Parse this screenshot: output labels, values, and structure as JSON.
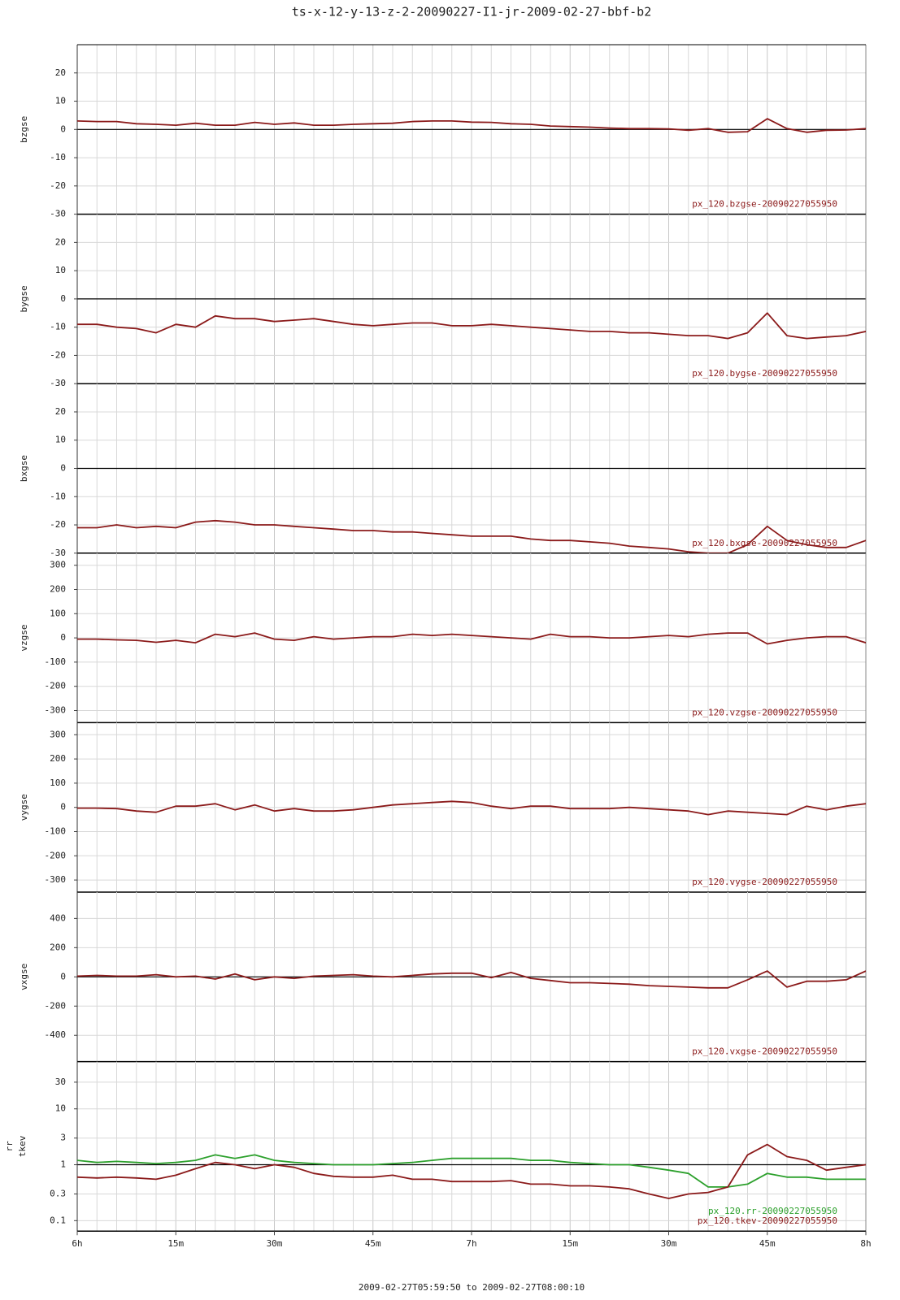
{
  "chart_data": {
    "type": "line",
    "title": "ts-x-12-y-13-z-2-20090227-I1-jr-2009-02-27-bbf-b2",
    "xlabel": "2009-02-27T05:59:50 to 2009-02-27T08:00:10",
    "x": [
      0,
      3,
      6,
      9,
      12,
      15,
      18,
      21,
      24,
      27,
      30,
      33,
      36,
      39,
      42,
      45,
      48,
      51,
      54,
      57,
      60,
      63,
      66,
      69,
      72,
      75,
      78,
      81,
      84,
      87,
      90,
      93,
      96,
      99,
      102,
      105,
      108,
      111,
      114,
      117,
      120
    ],
    "xlim": [
      0,
      120
    ],
    "xticks": [
      {
        "value": 0,
        "label": "6h"
      },
      {
        "value": 15,
        "label": "15m"
      },
      {
        "value": 30,
        "label": "30m"
      },
      {
        "value": 45,
        "label": "45m"
      },
      {
        "value": 60,
        "label": "7h"
      },
      {
        "value": 75,
        "label": "15m"
      },
      {
        "value": 90,
        "label": "30m"
      },
      {
        "value": 105,
        "label": "45m"
      },
      {
        "value": 120,
        "label": "8h"
      }
    ],
    "xgrid": [
      3,
      6,
      9,
      12,
      18,
      21,
      24,
      27,
      33,
      36,
      39,
      42,
      48,
      51,
      54,
      57,
      63,
      66,
      69,
      72,
      78,
      81,
      84,
      87,
      93,
      96,
      99,
      102,
      108,
      111,
      114,
      117
    ],
    "panels": [
      {
        "ylabel": "bzgse",
        "ylim": [
          -30,
          30
        ],
        "yticks": [
          -30,
          -20,
          -10,
          0,
          10,
          20
        ],
        "hline": 0,
        "series": [
          {
            "name": "px_120.bzgse-20090227055950",
            "color": "#8b1a1a",
            "values": [
              3,
              2.8,
              2.8,
              2,
              1.8,
              1.5,
              2.2,
              1.5,
              1.5,
              2.5,
              1.8,
              2.3,
              1.5,
              1.5,
              1.8,
              2,
              2.2,
              2.8,
              3,
              3,
              2.6,
              2.5,
              2,
              1.8,
              1.2,
              1,
              0.8,
              0.5,
              0.3,
              0.3,
              0.2,
              -0.3,
              0.3,
              -1,
              -0.8,
              3.8,
              0.3,
              -1,
              -0.3,
              -0.2,
              0.3
            ]
          }
        ]
      },
      {
        "ylabel": "bygse",
        "ylim": [
          -30,
          30
        ],
        "yticks": [
          -30,
          -20,
          -10,
          0,
          10,
          20
        ],
        "hline": 0,
        "series": [
          {
            "name": "px_120.bygse-20090227055950",
            "color": "#8b1a1a",
            "values": [
              -9,
              -9,
              -10,
              -10.5,
              -12,
              -9,
              -10,
              -6,
              -7,
              -7,
              -8,
              -7.5,
              -7,
              -8,
              -9,
              -9.5,
              -9,
              -8.5,
              -8.5,
              -9.5,
              -9.5,
              -9,
              -9.5,
              -10,
              -10.5,
              -11,
              -11.5,
              -11.5,
              -12,
              -12,
              -12.5,
              -13,
              -13,
              -14,
              -12,
              -5,
              -13,
              -14,
              -13.5,
              -13,
              -11.5
            ]
          }
        ]
      },
      {
        "ylabel": "bxgse",
        "ylim": [
          -30,
          30
        ],
        "yticks": [
          -30,
          -20,
          -10,
          0,
          10,
          20
        ],
        "hline": 0,
        "series": [
          {
            "name": "px_120.bxgse-20090227055950",
            "color": "#8b1a1a",
            "values": [
              -21,
              -21,
              -20,
              -21,
              -20.5,
              -21,
              -19,
              -18.5,
              -19,
              -20,
              -20,
              -20.5,
              -21,
              -21.5,
              -22,
              -22,
              -22.5,
              -22.5,
              -23,
              -23.5,
              -24,
              -24,
              -24,
              -25,
              -25.5,
              -25.5,
              -26,
              -26.5,
              -27.5,
              -28,
              -28.5,
              -29.5,
              -30,
              -30,
              -27,
              -20.5,
              -25.5,
              -27,
              -28,
              -28,
              -25.5
            ]
          }
        ]
      },
      {
        "ylabel": "vzgse",
        "ylim": [
          -350,
          350
        ],
        "yticks": [
          -300,
          -200,
          -100,
          0,
          100,
          200,
          300
        ],
        "series": [
          {
            "name": "px_120.vzgse-20090227055950",
            "color": "#8b1a1a",
            "values": [
              -5,
              -5,
              -8,
              -10,
              -18,
              -10,
              -20,
              15,
              5,
              20,
              -5,
              -10,
              5,
              -5,
              0,
              5,
              5,
              15,
              10,
              15,
              10,
              5,
              0,
              -5,
              15,
              5,
              5,
              0,
              0,
              5,
              10,
              5,
              15,
              20,
              20,
              -25,
              -10,
              0,
              5,
              5,
              -20
            ]
          }
        ]
      },
      {
        "ylabel": "vygse",
        "ylim": [
          -350,
          350
        ],
        "yticks": [
          -300,
          -200,
          -100,
          0,
          100,
          200,
          300
        ],
        "series": [
          {
            "name": "px_120.vygse-20090227055950",
            "color": "#8b1a1a",
            "values": [
              -3,
              -3,
              -5,
              -15,
              -20,
              5,
              5,
              15,
              -10,
              10,
              -15,
              -5,
              -15,
              -15,
              -10,
              0,
              10,
              15,
              20,
              25,
              20,
              5,
              -5,
              5,
              5,
              -5,
              -5,
              -5,
              0,
              -5,
              -10,
              -15,
              -30,
              -15,
              -20,
              -25,
              -30,
              5,
              -10,
              5,
              15
            ]
          }
        ]
      },
      {
        "ylabel": "vxgse",
        "ylim": [
          -580,
          580
        ],
        "yticks": [
          -400,
          -200,
          0,
          200,
          400
        ],
        "hline": 0,
        "series": [
          {
            "name": "px_120.vxgse-20090227055950",
            "color": "#8b1a1a",
            "values": [
              5,
              10,
              5,
              5,
              15,
              0,
              5,
              -15,
              20,
              -20,
              0,
              -10,
              5,
              10,
              15,
              5,
              0,
              10,
              20,
              25,
              25,
              -5,
              30,
              -10,
              -25,
              -40,
              -40,
              -45,
              -50,
              -60,
              -65,
              -70,
              -75,
              -75,
              -20,
              40,
              -70,
              -30,
              -30,
              -20,
              40
            ]
          }
        ]
      },
      {
        "ylabel": [
          "rr",
          "tkev"
        ],
        "ylim": [
          0.065,
          70
        ],
        "log": true,
        "yticks": [
          0.1,
          0.3,
          1,
          3,
          10,
          30
        ],
        "hline": 1,
        "series": [
          {
            "name": "px_120.rr-20090227055950",
            "color": "#2ca02c",
            "values": [
              1.2,
              1.1,
              1.15,
              1.1,
              1.05,
              1.1,
              1.2,
              1.5,
              1.3,
              1.5,
              1.2,
              1.1,
              1.05,
              1,
              1,
              1,
              1.05,
              1.1,
              1.2,
              1.3,
              1.3,
              1.3,
              1.3,
              1.2,
              1.2,
              1.1,
              1.05,
              1,
              1,
              0.9,
              0.8,
              0.7,
              0.4,
              0.4,
              0.45,
              0.7,
              0.6,
              0.6,
              0.55,
              0.55,
              0.55
            ]
          },
          {
            "name": "px_120.tkev-20090227055950",
            "color": "#8b1a1a",
            "values": [
              0.6,
              0.58,
              0.6,
              0.58,
              0.55,
              0.65,
              0.85,
              1.1,
              1,
              0.85,
              1,
              0.9,
              0.7,
              0.62,
              0.6,
              0.6,
              0.65,
              0.55,
              0.55,
              0.5,
              0.5,
              0.5,
              0.52,
              0.45,
              0.45,
              0.42,
              0.42,
              0.4,
              0.37,
              0.3,
              0.25,
              0.3,
              0.32,
              0.4,
              1.5,
              2.3,
              1.4,
              1.2,
              0.8,
              0.9,
              1
            ]
          }
        ]
      }
    ]
  }
}
